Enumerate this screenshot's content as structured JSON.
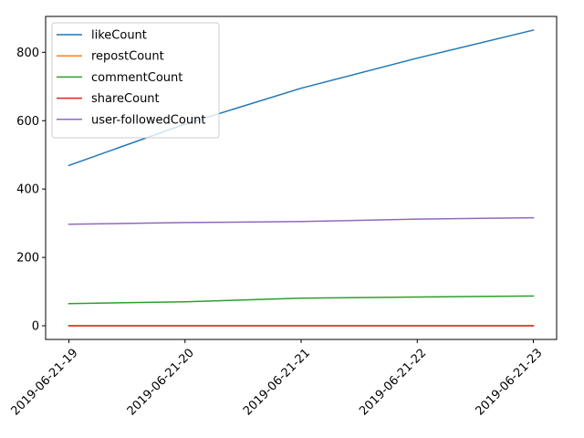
{
  "chart_data": {
    "type": "line",
    "title": "",
    "xlabel": "",
    "ylabel": "",
    "categories": [
      "2019-06-21-19",
      "2019-06-21-20",
      "2019-06-21-21",
      "2019-06-21-22",
      "2019-06-21-23"
    ],
    "ylim": [
      -40,
      905
    ],
    "yticks": [
      0,
      200,
      400,
      600,
      800
    ],
    "grid": false,
    "legend_position": "top-left",
    "series": [
      {
        "name": "likeCount",
        "color": "#1f77b4",
        "values": [
          469,
          590,
          695,
          783,
          865
        ]
      },
      {
        "name": "repostCount",
        "color": "#ff7f0e",
        "values": [
          0,
          0,
          0,
          0,
          0
        ]
      },
      {
        "name": "commentCount",
        "color": "#2ca02c",
        "values": [
          65,
          70,
          81,
          84,
          87
        ]
      },
      {
        "name": "shareCount",
        "color": "#d62728",
        "values": [
          0,
          0,
          0,
          0,
          0
        ]
      },
      {
        "name": "user-followedCount",
        "color": "#9467bd",
        "values": [
          297,
          302,
          305,
          312,
          316
        ]
      }
    ]
  }
}
